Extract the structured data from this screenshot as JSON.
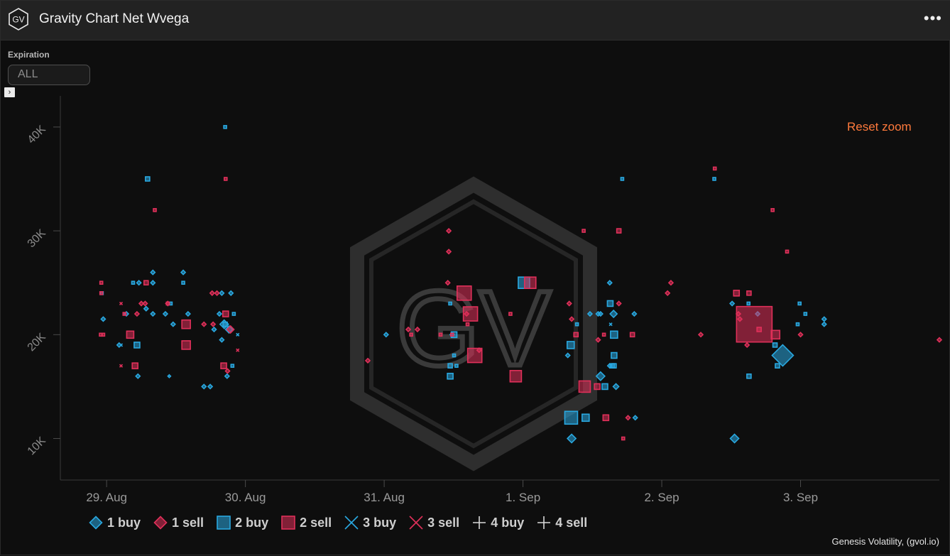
{
  "header": {
    "logo_text": "GV",
    "title": "Gravity Chart Net Wvega",
    "menu_icon": "more-horizontal-icon"
  },
  "filters": {
    "expiration_label": "Expiration",
    "expiration_value": "ALL"
  },
  "colors": {
    "buy": "#29a8e0",
    "sell": "#e0305a",
    "reset": "#ff7a3c"
  },
  "chart_data": {
    "type": "scatter",
    "title": "Gravity Chart Net Wvega",
    "watermark": "GV",
    "reset_zoom": "Reset zoom",
    "x_axis": {
      "type": "datetime",
      "start": "2019-08-28T16:00",
      "end": "2019-09-04T00:00",
      "tick_labels": [
        "29. Aug",
        "30. Aug",
        "31. Aug",
        "1. Sep",
        "2. Sep",
        "3. Sep"
      ]
    },
    "y_axis": {
      "range": [
        6000,
        43000
      ],
      "ticks": [
        10000,
        20000,
        30000,
        40000
      ],
      "tick_labels": [
        "10K",
        "20K",
        "30K",
        "40K"
      ]
    },
    "grid": false,
    "legend": {
      "position": "bottom-left",
      "items": [
        {
          "label": "1 buy",
          "marker": "diamond",
          "color": "buy"
        },
        {
          "label": "1 sell",
          "marker": "diamond",
          "color": "sell"
        },
        {
          "label": "2 buy",
          "marker": "square",
          "color": "buy"
        },
        {
          "label": "2 sell",
          "marker": "square",
          "color": "sell"
        },
        {
          "label": "3 buy",
          "marker": "x",
          "color": "buy"
        },
        {
          "label": "3 sell",
          "marker": "x",
          "color": "sell"
        },
        {
          "label": "4 buy",
          "marker": "plus",
          "color": "neutral"
        },
        {
          "label": "4 sell",
          "marker": "plus",
          "color": "neutral"
        }
      ]
    },
    "series": [
      {
        "name": "1 buy",
        "marker": "diamond",
        "color": "buy",
        "points": [
          [
            "2019-08-28T23:25",
            21500,
            3
          ],
          [
            "2019-08-29T02:10",
            19000,
            3
          ],
          [
            "2019-08-29T03:25",
            22000,
            3
          ],
          [
            "2019-08-29T05:25",
            16000,
            3
          ],
          [
            "2019-08-29T05:35",
            25000,
            3
          ],
          [
            "2019-08-29T06:50",
            22500,
            3
          ],
          [
            "2019-08-29T08:00",
            25000,
            3
          ],
          [
            "2019-08-29T08:00",
            26000,
            3
          ],
          [
            "2019-08-29T08:00",
            22000,
            3
          ],
          [
            "2019-08-29T10:50",
            16000,
            2
          ],
          [
            "2019-08-29T10:10",
            22000,
            3
          ],
          [
            "2019-08-29T13:15",
            26000,
            3
          ],
          [
            "2019-08-29T14:05",
            22000,
            3
          ],
          [
            "2019-08-29T16:50",
            15000,
            3
          ],
          [
            "2019-08-29T17:55",
            15000,
            3
          ],
          [
            "2019-08-29T18:35",
            20500,
            3
          ],
          [
            "2019-08-29T19:30",
            22000,
            3
          ],
          [
            "2019-08-29T19:55",
            19500,
            3
          ],
          [
            "2019-08-29T19:55",
            24000,
            3
          ],
          [
            "2019-08-29T20:20",
            21000,
            6
          ],
          [
            "2019-08-29T20:50",
            16000,
            3
          ],
          [
            "2019-08-29T21:10",
            20500,
            5
          ],
          [
            "2019-08-29T21:30",
            24000,
            3
          ],
          [
            "2019-08-29T11:30",
            21000,
            3
          ],
          [
            "2019-08-31T00:20",
            20000,
            3
          ],
          [
            "2019-08-31T11:45",
            20000,
            3
          ],
          [
            "2019-09-01T08:25",
            10000,
            6
          ],
          [
            "2019-09-01T07:45",
            18000,
            3
          ],
          [
            "2019-09-01T11:35",
            22000,
            3
          ],
          [
            "2019-09-01T13:25",
            16000,
            6
          ],
          [
            "2019-09-01T13:00",
            22000,
            3
          ],
          [
            "2019-09-01T13:25",
            22000,
            3
          ],
          [
            "2019-09-01T15:40",
            22000,
            5
          ],
          [
            "2019-09-01T15:00",
            25000,
            3
          ],
          [
            "2019-09-01T16:05",
            15000,
            4
          ],
          [
            "2019-09-01T19:15",
            22000,
            3
          ],
          [
            "2019-09-01T15:00",
            17000,
            3
          ],
          [
            "2019-09-02T12:35",
            10000,
            6
          ],
          [
            "2019-09-02T12:10",
            23000,
            3
          ],
          [
            "2019-09-02T20:55",
            18000,
            15
          ],
          [
            "2019-09-03T04:05",
            21000,
            3
          ],
          [
            "2019-09-03T04:05",
            21500,
            3
          ],
          [
            "2019-09-02T16:35",
            22000,
            3
          ],
          [
            "2019-09-01T19:25",
            12000,
            3
          ]
        ]
      },
      {
        "name": "1 sell",
        "marker": "diamond",
        "color": "sell",
        "points": [
          [
            "2019-08-29T06:00",
            23000,
            3
          ],
          [
            "2019-08-29T06:40",
            23000,
            3
          ],
          [
            "2019-08-29T05:15",
            22000,
            3
          ],
          [
            "2019-08-29T10:35",
            23000,
            3
          ],
          [
            "2019-08-29T16:50",
            21000,
            3
          ],
          [
            "2019-08-29T18:25",
            21000,
            3
          ],
          [
            "2019-08-29T18:15",
            24000,
            3
          ],
          [
            "2019-08-29T19:05",
            24000,
            3
          ],
          [
            "2019-08-29T20:55",
            16500,
            3
          ],
          [
            "2019-08-29T21:25",
            20500,
            5
          ],
          [
            "2019-08-30T21:10",
            17500,
            3
          ],
          [
            "2019-08-31T04:10",
            20500,
            3
          ],
          [
            "2019-08-31T05:45",
            20500,
            3
          ],
          [
            "2019-08-31T11:10",
            30000,
            3
          ],
          [
            "2019-08-31T11:10",
            28000,
            3
          ],
          [
            "2019-08-31T11:00",
            25000,
            3
          ],
          [
            "2019-08-31T14:15",
            22000,
            3
          ],
          [
            "2019-08-31T16:25",
            18500,
            3
          ],
          [
            "2019-09-01T08:00",
            23000,
            3
          ],
          [
            "2019-09-01T08:25",
            21500,
            3
          ],
          [
            "2019-09-01T13:00",
            19500,
            3
          ],
          [
            "2019-09-01T16:35",
            23000,
            3
          ],
          [
            "2019-09-01T18:10",
            12000,
            3
          ],
          [
            "2019-09-02T01:00",
            24000,
            3
          ],
          [
            "2019-09-02T01:35",
            25000,
            3
          ],
          [
            "2019-09-02T06:45",
            20000,
            3
          ],
          [
            "2019-09-02T14:45",
            19000,
            3
          ],
          [
            "2019-09-02T13:30",
            21500,
            3
          ],
          [
            "2019-09-03T00:00",
            20000,
            3
          ],
          [
            "2019-09-04T00:00",
            19500,
            3
          ],
          [
            "2019-09-02T13:15",
            22000,
            3
          ]
        ]
      },
      {
        "name": "2 buy",
        "marker": "square",
        "color": "buy",
        "points": [
          [
            "2019-08-28T23:10",
            24000,
            2
          ],
          [
            "2019-08-29T04:35",
            25000,
            2
          ],
          [
            "2019-08-29T05:15",
            19000,
            4
          ],
          [
            "2019-08-29T07:05",
            35000,
            3
          ],
          [
            "2019-08-29T13:15",
            25000,
            2
          ],
          [
            "2019-08-29T20:30",
            40000,
            2
          ],
          [
            "2019-08-29T20:30",
            21000,
            3
          ],
          [
            "2019-08-29T22:00",
            22000,
            2
          ],
          [
            "2019-08-29T21:45",
            17000,
            2
          ],
          [
            "2019-08-31T11:25",
            16000,
            4
          ],
          [
            "2019-08-31T11:25",
            23000,
            2
          ],
          [
            "2019-08-31T12:05",
            20000,
            4
          ],
          [
            "2019-08-31T12:05",
            18000,
            2
          ],
          [
            "2019-08-31T11:25",
            17000,
            3
          ],
          [
            "2019-08-31T12:30",
            17000,
            2
          ],
          [
            "2019-09-01T00:10",
            25000,
            8
          ],
          [
            "2019-09-01T08:15",
            19000,
            5
          ],
          [
            "2019-09-01T09:20",
            21000,
            2
          ],
          [
            "2019-09-01T08:20",
            12000,
            9
          ],
          [
            "2019-09-01T10:50",
            12000,
            5
          ],
          [
            "2019-09-01T15:05",
            23000,
            4
          ],
          [
            "2019-09-01T15:45",
            20000,
            5
          ],
          [
            "2019-09-01T15:45",
            18000,
            4
          ],
          [
            "2019-09-01T14:10",
            15000,
            4
          ],
          [
            "2019-09-01T15:25",
            17000,
            3
          ],
          [
            "2019-09-01T15:45",
            17000,
            3
          ],
          [
            "2019-09-01T17:10",
            35000,
            2
          ],
          [
            "2019-09-02T09:05",
            35000,
            2
          ],
          [
            "2019-09-02T15:05",
            16000,
            3
          ],
          [
            "2019-09-02T19:35",
            19000,
            3
          ],
          [
            "2019-09-02T23:50",
            23000,
            2
          ],
          [
            "2019-09-02T20:00",
            17000,
            3
          ],
          [
            "2019-09-02T23:30",
            21000,
            2
          ],
          [
            "2019-09-03T00:50",
            22000,
            2
          ],
          [
            "2019-09-02T15:00",
            23000,
            2
          ],
          [
            "2019-08-29T11:05",
            23000,
            2
          ]
        ]
      },
      {
        "name": "2 sell",
        "marker": "square",
        "color": "sell",
        "points": [
          [
            "2019-08-28T23:05",
            25000,
            2
          ],
          [
            "2019-08-28T23:05",
            24000,
            2
          ],
          [
            "2019-08-28T23:00",
            20000,
            2
          ],
          [
            "2019-08-28T23:25",
            20000,
            2
          ],
          [
            "2019-08-29T03:05",
            22000,
            2
          ],
          [
            "2019-08-29T04:05",
            20000,
            5
          ],
          [
            "2019-08-29T04:55",
            17000,
            4
          ],
          [
            "2019-08-29T06:50",
            25000,
            3
          ],
          [
            "2019-08-29T08:20",
            32000,
            2
          ],
          [
            "2019-08-29T10:35",
            23000,
            2
          ],
          [
            "2019-08-29T13:45",
            21000,
            6
          ],
          [
            "2019-08-29T13:45",
            19000,
            6
          ],
          [
            "2019-08-29T20:35",
            35000,
            2
          ],
          [
            "2019-08-29T20:35",
            22000,
            4
          ],
          [
            "2019-08-29T20:15",
            17000,
            4
          ],
          [
            "2019-08-31T04:40",
            20000,
            2
          ],
          [
            "2019-08-31T09:45",
            20000,
            2
          ],
          [
            "2019-08-31T11:45",
            20000,
            2
          ],
          [
            "2019-08-31T13:50",
            24000,
            10
          ],
          [
            "2019-08-31T14:25",
            21000,
            2
          ],
          [
            "2019-08-31T14:55",
            22000,
            10
          ],
          [
            "2019-08-31T15:40",
            18000,
            10
          ],
          [
            "2019-08-31T22:45",
            16000,
            8
          ],
          [
            "2019-09-01T01:15",
            25000,
            8
          ],
          [
            "2019-08-31T21:50",
            22000,
            2
          ],
          [
            "2019-09-01T10:40",
            15000,
            8
          ],
          [
            "2019-09-01T12:50",
            15000,
            4
          ],
          [
            "2019-09-01T17:20",
            10000,
            2
          ],
          [
            "2019-09-01T18:55",
            20000,
            3
          ],
          [
            "2019-09-01T16:35",
            30000,
            3
          ],
          [
            "2019-09-01T14:20",
            12000,
            4
          ],
          [
            "2019-09-01T14:00",
            20000,
            2
          ],
          [
            "2019-09-01T09:10",
            20000,
            3
          ],
          [
            "2019-09-02T09:10",
            36000,
            2
          ],
          [
            "2019-09-02T12:55",
            24000,
            4
          ],
          [
            "2019-09-02T15:05",
            24000,
            3
          ],
          [
            "2019-09-02T16:00",
            21000,
            25
          ],
          [
            "2019-09-02T19:40",
            20000,
            6
          ],
          [
            "2019-09-02T19:10",
            32000,
            2
          ],
          [
            "2019-09-02T21:40",
            28000,
            2
          ],
          [
            "2019-09-02T16:50",
            20500,
            3
          ],
          [
            "2019-09-01T10:30",
            30000,
            2
          ]
        ]
      },
      {
        "name": "3 buy",
        "marker": "x",
        "color": "buy",
        "points": [
          [
            "2019-08-29T02:30",
            19000,
            2
          ],
          [
            "2019-08-29T22:40",
            20000,
            2
          ],
          [
            "2019-09-01T15:10",
            21000,
            2
          ]
        ]
      },
      {
        "name": "3 sell",
        "marker": "x",
        "color": "sell",
        "points": [
          [
            "2019-08-29T02:30",
            23000,
            2
          ],
          [
            "2019-08-29T02:30",
            17000,
            2
          ],
          [
            "2019-08-29T22:40",
            18500,
            2
          ]
        ]
      },
      {
        "name": "4 buy",
        "marker": "plus",
        "color": "neutral",
        "points": []
      },
      {
        "name": "4 sell",
        "marker": "plus",
        "color": "neutral",
        "points": []
      }
    ]
  },
  "footer": {
    "credit": "Genesis Volatility, (gvol.io)"
  }
}
